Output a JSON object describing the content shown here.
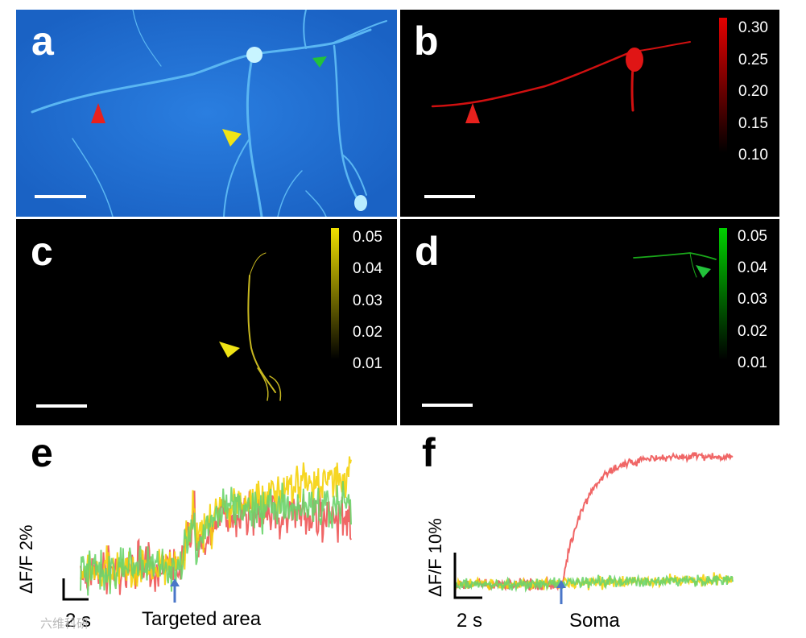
{
  "panels": {
    "a": {
      "label": "a"
    },
    "b": {
      "label": "b",
      "colorbar": {
        "color": "#e30000",
        "ticks": [
          "0.30",
          "0.25",
          "0.20",
          "0.15",
          "0.10"
        ]
      }
    },
    "c": {
      "label": "c",
      "colorbar": {
        "color": "#f0e000",
        "ticks": [
          "0.05",
          "0.04",
          "0.03",
          "0.02",
          "0.01"
        ]
      }
    },
    "d": {
      "label": "d",
      "colorbar": {
        "color": "#00d000",
        "ticks": [
          "0.05",
          "0.04",
          "0.03",
          "0.02",
          "0.01"
        ]
      }
    },
    "e": {
      "label": "e",
      "y_scale": "ΔF/F 2%",
      "x_scale": "2 s",
      "stim": "Targeted area"
    },
    "f": {
      "label": "f",
      "y_scale": "ΔF/F 10%",
      "x_scale": "2 s",
      "stim": "Soma"
    }
  },
  "colors": {
    "red": "#ee5555",
    "yellow": "#f5d20a",
    "green": "#6cd46c",
    "arrow": "#4a76c8",
    "panel_a_bg": "#1e6ed0"
  },
  "chart_data": [
    {
      "type": "line",
      "title": "e",
      "x_scale_bar": "2 s",
      "y_scale_bar": "ΔF/F 2%",
      "annotation": "Targeted area",
      "series": [
        {
          "name": "red",
          "color": "#ee5555",
          "baseline": 0,
          "response": [
            0,
            4.6,
            4.8,
            4.5,
            4.4
          ]
        },
        {
          "name": "yellow",
          "color": "#f5d20a",
          "baseline": 0,
          "response": [
            0,
            5.2,
            6.5,
            7.5,
            7.8
          ]
        },
        {
          "name": "green",
          "color": "#6cd46c",
          "baseline": 0,
          "response": [
            0,
            5.0,
            5.5,
            5.2,
            5.6
          ]
        }
      ]
    },
    {
      "type": "line",
      "title": "f",
      "x_scale_bar": "2 s",
      "y_scale_bar": "ΔF/F 10%",
      "annotation": "Soma",
      "series": [
        {
          "name": "red",
          "color": "#ee5555",
          "baseline": 0,
          "peak": 38
        },
        {
          "name": "yellow",
          "color": "#f5d20a",
          "baseline": 0,
          "drift": 1.5
        },
        {
          "name": "green",
          "color": "#6cd46c",
          "baseline": 0,
          "drift": 1.5
        }
      ]
    }
  ],
  "watermark": "六维科研"
}
